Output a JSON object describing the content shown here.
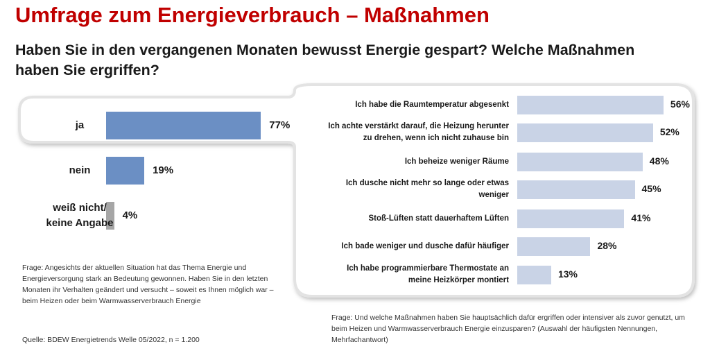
{
  "title": "Umfrage zum Energieverbrauch – Maßnahmen",
  "question": "Haben Sie in den vergangenen Monaten bewusst Energie gespart? Welche Maßnahmen haben Sie ergriffen?",
  "chart_data": [
    {
      "type": "bar",
      "orientation": "horizontal",
      "categories": [
        "ja",
        "nein",
        "weiß nicht/\nkeine Angabe"
      ],
      "values": [
        77,
        19,
        4
      ],
      "value_labels": [
        "77%",
        "19%",
        "4%"
      ],
      "unit": "%",
      "colors": [
        "#6b8fc4",
        "#6b8fc4",
        "#a6a6a6"
      ],
      "xlim": [
        0,
        100
      ],
      "grid": false
    },
    {
      "type": "bar",
      "orientation": "horizontal",
      "categories": [
        "Ich habe die Raumtemperatur abgesenkt",
        "Ich achte verstärkt darauf, die Heizung herunter\nzu drehen, wenn ich nicht zuhause bin",
        "Ich beheize weniger Räume",
        "Ich dusche nicht mehr so lange oder etwas\nweniger",
        "Stoß-Lüften statt dauerhaftem Lüften",
        "Ich bade weniger und dusche dafür häufiger",
        "Ich habe programmierbare Thermostate an\nmeine Heizkörper montiert"
      ],
      "values": [
        56,
        52,
        48,
        45,
        41,
        28,
        13
      ],
      "value_labels": [
        "56%",
        "52%",
        "48%",
        "45%",
        "41%",
        "28%",
        "13%"
      ],
      "unit": "%",
      "color": "#c9d3e6",
      "xlim": [
        0,
        60
      ],
      "grid": false
    }
  ],
  "note_left": "Frage: Angesichts der aktuellen Situation hat das Thema Energie und Energieversorgung stark an Bedeutung gewonnen. Haben Sie in den letzten Monaten ihr Verhalten geändert und versucht – soweit es Ihnen möglich war – beim Heizen oder beim Warmwasserverbrauch Energie",
  "note_right": "Frage: Und welche Maßnahmen haben Sie hauptsächlich dafür ergriffen oder intensiver als zuvor genutzt, um beim Heizen und Warmwasserverbrauch Energie einzusparen? (Auswahl der häufigsten Nennungen, Mehrfachantwort)",
  "source": "Quelle: BDEW Energietrends Welle 05/2022, n = 1.200"
}
